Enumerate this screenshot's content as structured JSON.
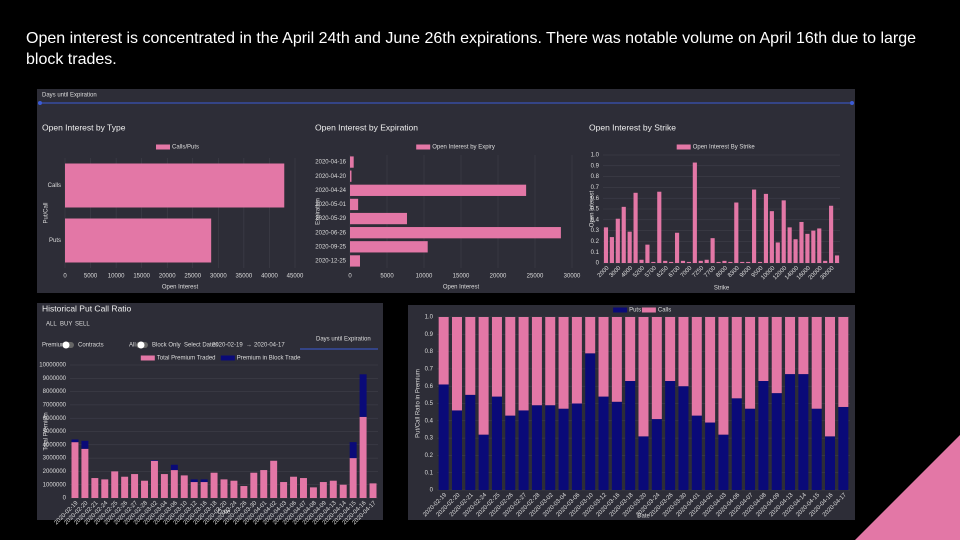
{
  "headline": "Open interest is concentrated in the April 24th and June 26th expirations. There was notable volume on April 16th due to large block trades.",
  "top_slider_label": "Days until Expiration",
  "controls": {
    "modes": [
      "ALL",
      "BUY",
      "SELL"
    ],
    "toggle_a": [
      "Premium",
      "Contracts"
    ],
    "toggle_b": [
      "All",
      "Block Only"
    ],
    "date_label": "Select Dates",
    "start_date": "2020-02-19",
    "date_separator": "→",
    "end_date": "2020-04-17",
    "slider_label": "Days until Expiration"
  },
  "chart_data": [
    {
      "type": "hbar",
      "title": "Open Interest by Type",
      "categories": [
        "Calls",
        "Puts"
      ],
      "series": [
        {
          "name": "Calls/Puts",
          "color": "#e377a6",
          "values": [
            42900,
            28600
          ]
        }
      ],
      "xlabel": "Open Interest",
      "ylabel": "Put/Call",
      "xlim": [
        0,
        45000
      ],
      "xticks": [
        0,
        5000,
        10000,
        15000,
        20000,
        25000,
        30000,
        35000,
        40000,
        45000
      ]
    },
    {
      "type": "hbar",
      "title": "Open Interest by Expiration",
      "categories": [
        "2020-04-16",
        "2020-04-20",
        "2020-04-24",
        "2020-05-01",
        "2020-05-29",
        "2020-06-26",
        "2020-09-25",
        "2020-12-25"
      ],
      "series": [
        {
          "name": "Open Interest by Expiry",
          "color": "#e377a6",
          "values": [
            500,
            200,
            23800,
            1100,
            7700,
            28500,
            10500,
            1350
          ]
        }
      ],
      "xlabel": "Open Interest",
      "ylabel": "Expiration",
      "xlim": [
        0,
        30000
      ],
      "xticks": [
        0,
        5000,
        10000,
        15000,
        20000,
        25000,
        30000
      ]
    },
    {
      "type": "bar",
      "title": "Open Interest by Strike",
      "categories": [
        "2000",
        null,
        "3000",
        null,
        "4000",
        null,
        "5200",
        null,
        "5700",
        null,
        "6250",
        null,
        "6700",
        null,
        "7000",
        null,
        "7250",
        null,
        "7700",
        null,
        "8000",
        null,
        "8300",
        null,
        "9000",
        null,
        "9500",
        null,
        "10000",
        null,
        "12000",
        null,
        "14000",
        null,
        "16000",
        null,
        "20000",
        null,
        "30000",
        null
      ],
      "series": [
        {
          "name": "Open Interest By Strike",
          "color": "#e377a6",
          "values": [
            0.33,
            0.24,
            0.41,
            0.52,
            0.29,
            0.65,
            0.03,
            0.17,
            0.01,
            0.66,
            0.02,
            0.01,
            0.28,
            0.02,
            0.01,
            0.93,
            0.02,
            0.03,
            0.23,
            0.01,
            0.02,
            0.01,
            0.56,
            0.01,
            0.01,
            0.68,
            0.01,
            0.64,
            0.48,
            0.19,
            0.58,
            0.33,
            0.22,
            0.38,
            0.27,
            0.3,
            0.32,
            0.02,
            0.53,
            0.07
          ]
        }
      ],
      "xlabel": "Strike",
      "ylabel": "Open Interest",
      "ylim": [
        0,
        1
      ],
      "yticks": [
        0,
        0.1,
        0.2,
        0.3,
        0.4,
        0.5,
        0.6,
        0.7,
        0.8,
        0.9,
        {
          "value": 1,
          "label": "1.0"
        }
      ]
    },
    {
      "type": "stacked",
      "title": "Historical Put Call Ratio",
      "categories": [
        "2020-02-19",
        "2020-02-20",
        "2020-02-21",
        "2020-02-24",
        "2020-02-25",
        "2020-02-26",
        "2020-02-27",
        "2020-02-28",
        "2020-03-02",
        "2020-03-04",
        "2020-03-06",
        "2020-03-10",
        "2020-03-12",
        "2020-03-16",
        "2020-03-18",
        "2020-03-20",
        "2020-03-24",
        "2020-03-26",
        "2020-03-30",
        "2020-04-01",
        "2020-04-02",
        "2020-04-03",
        "2020-04-06",
        "2020-04-07",
        "2020-04-08",
        "2020-04-09",
        "2020-04-13",
        "2020-04-14",
        "2020-04-15",
        "2020-04-16",
        "2020-04-17"
      ],
      "series": [
        {
          "name": "Total Premium Traded",
          "color": "#e377a6",
          "values": [
            4200000,
            3700000,
            1500000,
            1400000,
            2000000,
            1600000,
            1800000,
            1300000,
            2800000,
            1800000,
            2100000,
            1700000,
            1200000,
            1200000,
            1900000,
            1400000,
            1300000,
            900000,
            1900000,
            2100000,
            2800000,
            1200000,
            1600000,
            1500000,
            800000,
            1200000,
            1300000,
            1000000,
            3000000,
            6100000,
            1100000
          ]
        },
        {
          "name": "Premium in Block Trade",
          "color": "#0a0a78",
          "values": [
            200000,
            600000,
            0,
            0,
            0,
            0,
            0,
            0,
            50000,
            0,
            400000,
            0,
            200000,
            200000,
            0,
            0,
            0,
            0,
            0,
            0,
            0,
            0,
            0,
            0,
            0,
            0,
            0,
            0,
            1200000,
            3200000,
            0
          ]
        }
      ],
      "xlabel": "Date",
      "ylabel": "Total Premium",
      "ylim": [
        0,
        10000000
      ],
      "yticks": [
        0,
        1000000,
        2000000,
        3000000,
        4000000,
        5000000,
        6000000,
        7000000,
        8000000,
        9000000,
        10000000
      ]
    },
    {
      "type": "stacked",
      "categories": [
        "2020-02-19",
        "2020-02-20",
        "2020-02-21",
        "2020-02-24",
        "2020-02-25",
        "2020-02-26",
        "2020-02-27",
        "2020-02-28",
        "2020-03-02",
        "2020-03-04",
        "2020-03-06",
        "2020-03-10",
        "2020-03-12",
        "2020-03-16",
        "2020-03-18",
        "2020-03-20",
        "2020-03-24",
        "2020-03-26",
        "2020-03-30",
        "2020-04-01",
        "2020-04-02",
        "2020-04-03",
        "2020-04-06",
        "2020-04-07",
        "2020-04-08",
        "2020-04-09",
        "2020-04-13",
        "2020-04-14",
        "2020-04-15",
        "2020-04-16",
        "2020-04-17"
      ],
      "series": [
        {
          "name": "Puts",
          "color": "#0a0a78",
          "values": [
            0.61,
            0.46,
            0.55,
            0.32,
            0.54,
            0.43,
            0.46,
            0.49,
            0.49,
            0.47,
            0.5,
            0.79,
            0.54,
            0.51,
            0.63,
            0.31,
            0.41,
            0.63,
            0.6,
            0.43,
            0.39,
            0.32,
            0.53,
            0.47,
            0.63,
            0.56,
            0.67,
            0.67,
            0.47,
            0.31,
            0.48
          ]
        },
        {
          "name": "Calls",
          "color": "#e377a6",
          "values": [
            0.39,
            0.54,
            0.45,
            0.68,
            0.46,
            0.57,
            0.54,
            0.51,
            0.51,
            0.53,
            0.5,
            0.21,
            0.46,
            0.49,
            0.37,
            0.69,
            0.59,
            0.37,
            0.4,
            0.57,
            0.61,
            0.68,
            0.47,
            0.53,
            0.37,
            0.44,
            0.33,
            0.33,
            0.53,
            0.69,
            0.52
          ]
        }
      ],
      "xlabel": "Date",
      "ylabel": "Put/Call Ratio in Premium",
      "ylim": [
        0,
        1
      ],
      "yticks": [
        0,
        0.1,
        0.2,
        0.3,
        0.4,
        0.5,
        0.6,
        0.7,
        0.8,
        0.9,
        {
          "value": 1,
          "label": "1.0"
        }
      ]
    }
  ]
}
